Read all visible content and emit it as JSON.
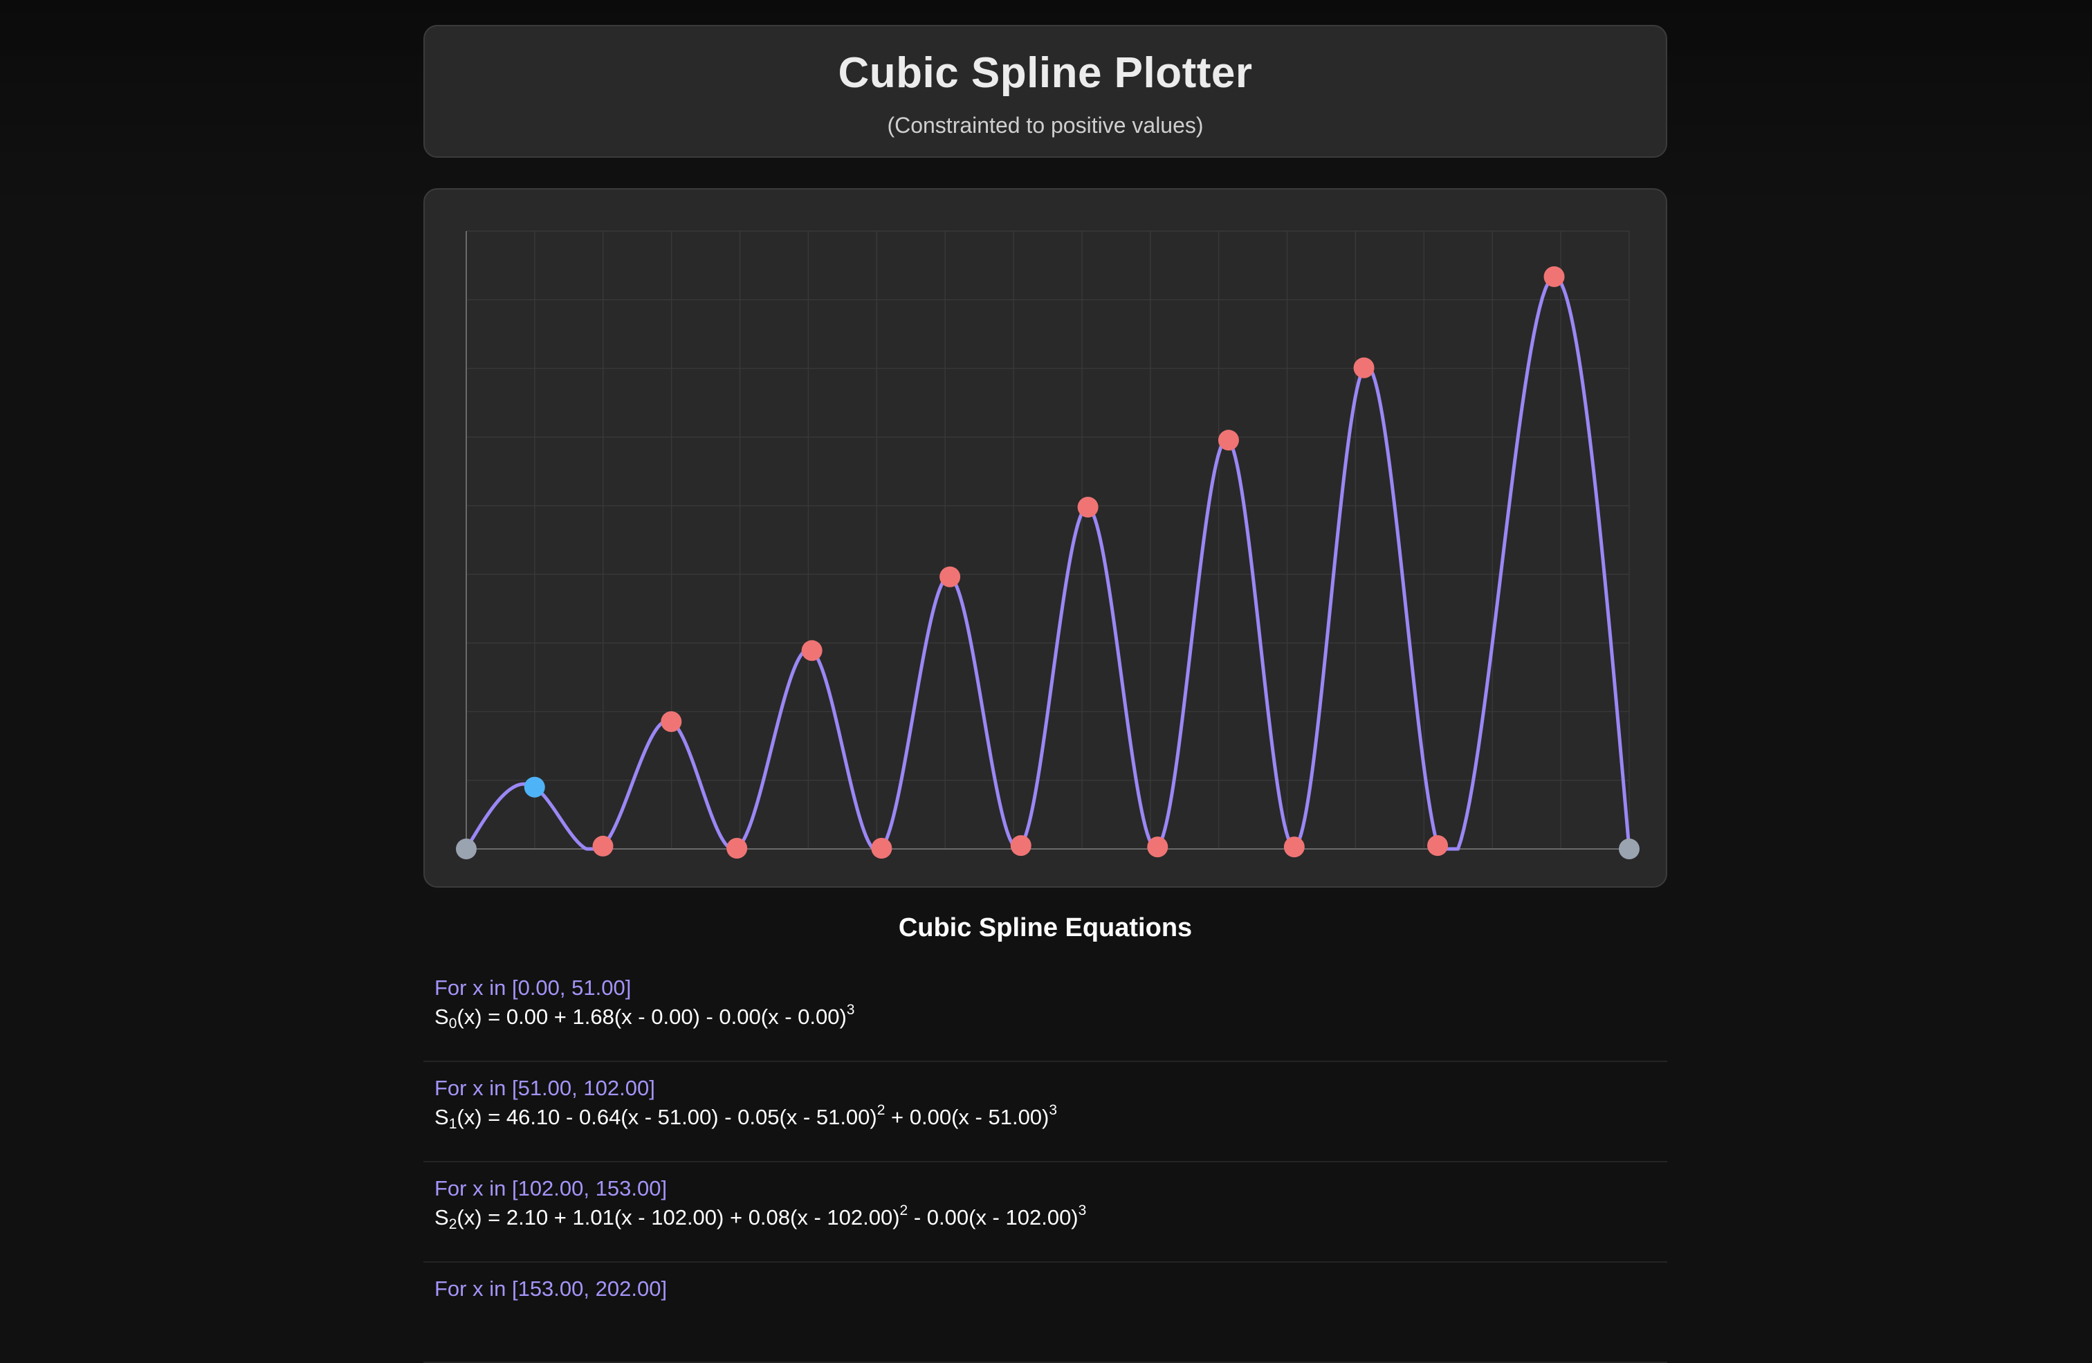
{
  "header": {
    "title": "Cubic Spline Plotter",
    "subtitle": "(Constrainted to positive values)"
  },
  "colors": {
    "curve": "#9b87f5",
    "point_default": "#f07474",
    "point_selected": "#4fb3f7",
    "point_endpoint": "#9aa3b0",
    "background": "#111111",
    "card": "#292929"
  },
  "chart_data": {
    "type": "line",
    "xlim": [
      0,
      868
    ],
    "ylim": [
      0,
      461
    ],
    "grid": true,
    "points": [
      {
        "x": 0,
        "y": 0,
        "kind": "endpoint"
      },
      {
        "x": 51,
        "y": 46.1,
        "kind": "selected"
      },
      {
        "x": 102,
        "y": 2.1,
        "kind": "default"
      },
      {
        "x": 153,
        "y": 95,
        "kind": "default"
      },
      {
        "x": 202,
        "y": 0.5,
        "kind": "default"
      },
      {
        "x": 258,
        "y": 148,
        "kind": "default"
      },
      {
        "x": 310,
        "y": 0.5,
        "kind": "default"
      },
      {
        "x": 361,
        "y": 203,
        "kind": "default"
      },
      {
        "x": 414,
        "y": 2.5,
        "kind": "default"
      },
      {
        "x": 464,
        "y": 255,
        "kind": "default"
      },
      {
        "x": 516,
        "y": 1.5,
        "kind": "default"
      },
      {
        "x": 569,
        "y": 305,
        "kind": "default"
      },
      {
        "x": 618,
        "y": 1.5,
        "kind": "default"
      },
      {
        "x": 670,
        "y": 359,
        "kind": "default"
      },
      {
        "x": 725,
        "y": 2.5,
        "kind": "default"
      },
      {
        "x": 812,
        "y": 427,
        "kind": "default"
      },
      {
        "x": 868,
        "y": 0,
        "kind": "endpoint"
      }
    ]
  },
  "equations": {
    "title": "Cubic Spline Equations",
    "items": [
      {
        "range": "For x in [0.00, 51.00]",
        "fn": "S",
        "index": "0",
        "formula": "(x) = 0.00 + 1.68(x - 0.00) - 0.00(x - 0.00)",
        "formula_b": "",
        "exp_a": "3",
        "exp_b": ""
      },
      {
        "range": "For x in [51.00, 102.00]",
        "fn": "S",
        "index": "1",
        "formula": "(x) = 46.10 - 0.64(x - 51.00) - 0.05(x - 51.00)",
        "formula_b": " + 0.00(x - 51.00)",
        "exp_a": "2",
        "exp_b": "3"
      },
      {
        "range": "For x in [102.00, 153.00]",
        "fn": "S",
        "index": "2",
        "formula": "(x) = 2.10 + 1.01(x - 102.00) + 0.08(x - 102.00)",
        "formula_b": " - 0.00(x - 102.00)",
        "exp_a": "2",
        "exp_b": "3"
      },
      {
        "range": "For x in [153.00, 202.00]",
        "fn": "",
        "index": "",
        "formula": "",
        "formula_b": "",
        "exp_a": "",
        "exp_b": ""
      }
    ]
  }
}
